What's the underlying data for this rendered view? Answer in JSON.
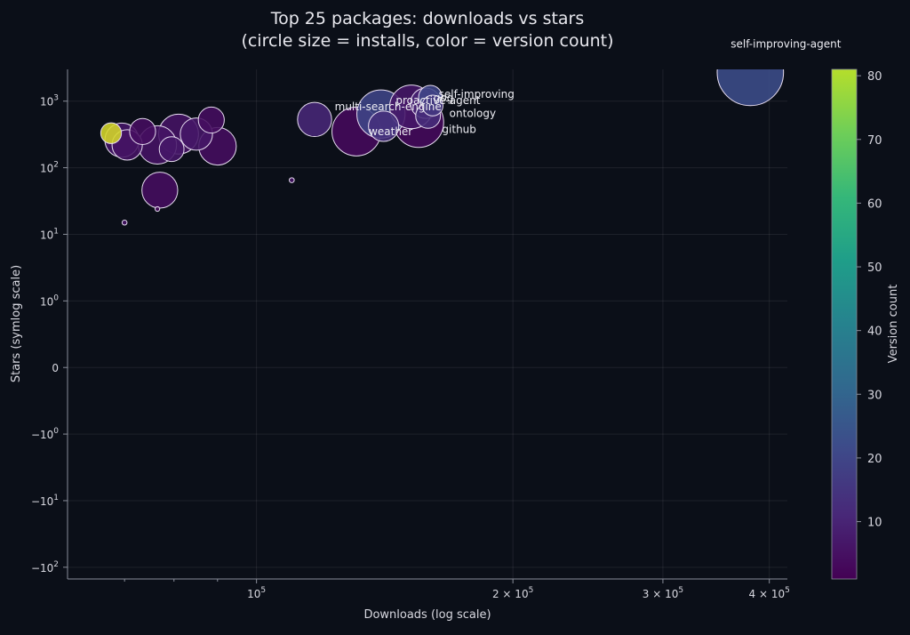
{
  "chart_data": {
    "type": "scatter",
    "title": "Top 25 packages: downloads vs stars",
    "subtitle": "(circle size = installs, color = version count)",
    "xlabel": "Downloads (log scale)",
    "ylabel": "Stars (symlog scale)",
    "x_scale": "log",
    "y_scale": "symlog",
    "y_linthresh": 1,
    "xlim": [
      60000,
      420000
    ],
    "ylim": [
      -150,
      3000
    ],
    "x_ticks": [
      {
        "value": 100000,
        "mantissa": "",
        "exp": "5"
      },
      {
        "value": 200000,
        "mantissa": "2 × ",
        "exp": "5"
      },
      {
        "value": 300000,
        "mantissa": "3 × ",
        "exp": "5"
      },
      {
        "value": 400000,
        "mantissa": "4 × ",
        "exp": "5"
      }
    ],
    "x_minor_ticks": [
      70000,
      80000,
      90000
    ],
    "y_ticks": [
      {
        "value": 1000,
        "sign": "",
        "exp": "3"
      },
      {
        "value": 100,
        "sign": "",
        "exp": "2"
      },
      {
        "value": 10,
        "sign": "",
        "exp": "1"
      },
      {
        "value": 1,
        "sign": "",
        "exp": "0"
      },
      {
        "value": 0,
        "sign": "0",
        "exp": ""
      },
      {
        "value": -1,
        "sign": "−",
        "exp": "0"
      },
      {
        "value": -10,
        "sign": "−",
        "exp": "1"
      },
      {
        "value": -100,
        "sign": "−",
        "exp": "2"
      }
    ],
    "colorbar": {
      "label": "Version count",
      "min": 1,
      "max": 81,
      "ticks": [
        10,
        20,
        30,
        40,
        50,
        60,
        70,
        80
      ]
    },
    "points": [
      {
        "x": 67500,
        "y": 330,
        "installs": 700,
        "versions": 81
      },
      {
        "x": 70000,
        "y": 15,
        "installs": 40,
        "versions": 5
      },
      {
        "x": 69500,
        "y": 260,
        "installs": 1900,
        "versions": 6
      },
      {
        "x": 70500,
        "y": 220,
        "installs": 1500,
        "versions": 5
      },
      {
        "x": 73500,
        "y": 350,
        "installs": 1100,
        "versions": 4
      },
      {
        "x": 76500,
        "y": 220,
        "installs": 2400,
        "versions": 5
      },
      {
        "x": 77000,
        "y": 46,
        "installs": 2100,
        "versions": 4
      },
      {
        "x": 76500,
        "y": 24,
        "installs": 35,
        "versions": 3
      },
      {
        "x": 79500,
        "y": 190,
        "installs": 1000,
        "versions": 6
      },
      {
        "x": 81000,
        "y": 320,
        "installs": 2600,
        "versions": 5
      },
      {
        "x": 85000,
        "y": 320,
        "installs": 1700,
        "versions": 6
      },
      {
        "x": 88500,
        "y": 520,
        "installs": 1100,
        "versions": 4
      },
      {
        "x": 90000,
        "y": 210,
        "installs": 2300,
        "versions": 4
      },
      {
        "x": 110000,
        "y": 65,
        "installs": 40,
        "versions": 5
      },
      {
        "x": 117000,
        "y": 530,
        "installs": 1900,
        "versions": 10
      },
      {
        "x": 131000,
        "y": 350,
        "installs": 3900,
        "versions": 3
      },
      {
        "x": 140000,
        "y": 640,
        "installs": 3800,
        "versions": 18,
        "label": "multi-search-engine",
        "label_dx": 8,
        "label_dy": -4
      },
      {
        "x": 141000,
        "y": 420,
        "installs": 1500,
        "versions": 12,
        "label": "weather",
        "label_dx": 8,
        "label_dy": 10
      },
      {
        "x": 152000,
        "y": 820,
        "installs": 3100,
        "versions": 6,
        "label": "proactive-agent",
        "label_dx": 30,
        "label_dy": -3
      },
      {
        "x": 155000,
        "y": 480,
        "installs": 4100,
        "versions": 3
      },
      {
        "x": 158000,
        "y": 930,
        "installs": 1500,
        "versions": 9,
        "label": "gog",
        "label_dx": 20,
        "label_dy": -2
      },
      {
        "x": 160000,
        "y": 1150,
        "installs": 900,
        "versions": 18,
        "label": "self-improving",
        "label_dx": 52,
        "label_dy": 1
      },
      {
        "x": 161000,
        "y": 860,
        "installs": 700,
        "versions": 14,
        "label": "ontology",
        "label_dx": 45,
        "label_dy": 13
      },
      {
        "x": 159000,
        "y": 600,
        "installs": 1000,
        "versions": 11,
        "label": "github",
        "label_dx": 35,
        "label_dy": 19
      },
      {
        "x": 380000,
        "y": 2700,
        "installs": 7200,
        "versions": 20,
        "label": "self-improving-agent",
        "label_dx": 40,
        "label_dy": -28
      }
    ]
  }
}
